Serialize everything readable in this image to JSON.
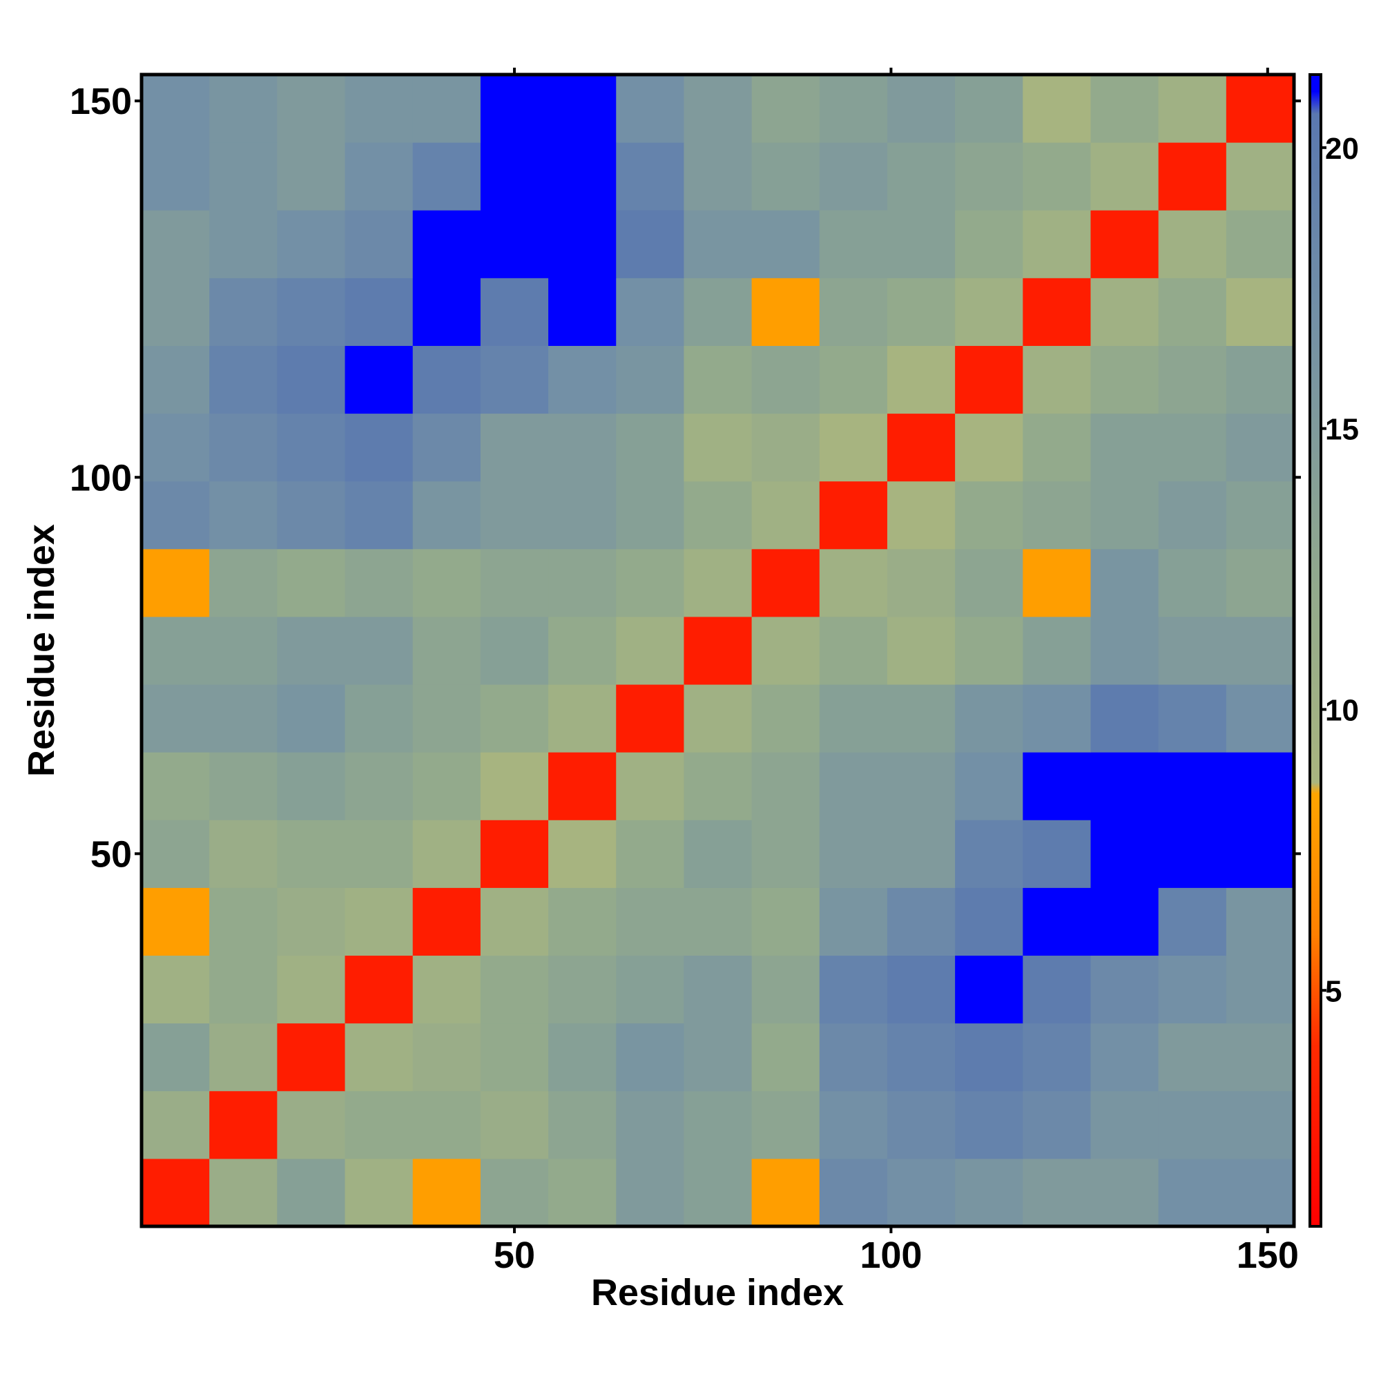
{
  "chart_data": {
    "type": "heatmap",
    "xlabel": "Residue index",
    "ylabel": "Residue index",
    "xlim": [
      0.5,
      153.5
    ],
    "ylim": [
      0.5,
      153.5
    ],
    "xticks": [
      50,
      100,
      150
    ],
    "yticks": [
      50,
      100,
      150
    ],
    "x_bins": [
      0.5,
      9.5,
      18.5,
      27.5,
      36.5,
      45.5,
      54.5,
      63.5,
      72.5,
      81.5,
      90.5,
      99.5,
      108.5,
      117.5,
      126.5,
      135.5,
      144.5,
      153.5
    ],
    "y_bins": [
      0.5,
      9.5,
      18.5,
      27.5,
      36.5,
      45.5,
      54.5,
      63.5,
      72.5,
      81.5,
      90.5,
      99.5,
      108.5,
      117.5,
      126.5,
      135.5,
      144.5,
      153.5
    ],
    "values": [
      [
        3,
        11,
        14,
        10,
        8,
        13,
        12,
        15,
        14,
        8,
        18,
        17,
        16,
        15,
        15,
        17,
        17
      ],
      [
        11,
        3,
        11,
        12,
        12,
        11,
        13,
        15,
        14,
        13,
        17,
        18,
        19,
        18,
        16,
        16,
        16
      ],
      [
        14,
        11,
        3,
        10,
        11,
        12,
        14,
        16,
        15,
        12,
        18,
        19,
        20,
        19,
        17,
        15,
        15
      ],
      [
        10,
        12,
        10,
        3,
        10,
        12,
        13,
        14,
        15,
        13,
        19,
        20,
        21,
        20,
        18,
        17,
        16
      ],
      [
        8,
        12,
        11,
        10,
        3,
        10,
        12,
        13,
        13,
        12,
        16,
        18,
        20,
        21,
        21,
        19,
        16
      ],
      [
        13,
        11,
        12,
        12,
        10,
        3,
        9,
        12,
        14,
        13,
        15,
        15,
        19,
        20,
        21,
        21,
        21
      ],
      [
        12,
        13,
        14,
        13,
        12,
        9,
        3,
        10,
        12,
        13,
        15,
        15,
        17,
        21,
        21,
        21,
        21
      ],
      [
        15,
        15,
        16,
        14,
        13,
        12,
        10,
        3,
        10,
        12,
        14,
        14,
        16,
        17,
        20,
        19,
        17
      ],
      [
        14,
        14,
        15,
        15,
        13,
        14,
        12,
        10,
        3,
        10,
        12,
        10,
        12,
        14,
        16,
        15,
        15
      ],
      [
        8,
        13,
        12,
        13,
        12,
        13,
        13,
        12,
        10,
        3,
        10,
        11,
        13,
        8,
        16,
        14,
        13
      ],
      [
        18,
        17,
        18,
        19,
        16,
        15,
        15,
        14,
        12,
        10,
        3,
        9,
        12,
        13,
        14,
        15,
        14
      ],
      [
        17,
        18,
        19,
        20,
        18,
        15,
        15,
        14,
        10,
        11,
        9,
        3,
        9,
        12,
        14,
        14,
        15
      ],
      [
        16,
        19,
        20,
        21,
        20,
        19,
        17,
        16,
        12,
        13,
        12,
        9,
        3,
        10,
        12,
        13,
        14
      ],
      [
        15,
        18,
        19,
        20,
        21,
        20,
        21,
        17,
        14,
        8,
        13,
        12,
        10,
        3,
        10,
        12,
        9
      ],
      [
        15,
        16,
        17,
        18,
        21,
        21,
        21,
        20,
        16,
        16,
        14,
        14,
        12,
        10,
        3,
        10,
        12
      ],
      [
        17,
        16,
        15,
        17,
        19,
        21,
        21,
        19,
        15,
        14,
        15,
        14,
        13,
        12,
        10,
        3,
        10
      ],
      [
        17,
        16,
        15,
        16,
        16,
        21,
        21,
        17,
        15,
        13,
        14,
        15,
        14,
        9,
        12,
        10,
        3
      ]
    ],
    "clim": [
      0.8,
      21.3
    ],
    "cticks": [
      5,
      10,
      15,
      20
    ],
    "colorscale": [
      [
        0.8,
        "#ff0000"
      ],
      [
        4,
        "#ff2a00"
      ],
      [
        6,
        "#ff8000"
      ],
      [
        8.5,
        "#ffa500"
      ],
      [
        8.7,
        "#a9b57f"
      ],
      [
        12,
        "#93aa8c"
      ],
      [
        17,
        "#7390a6"
      ],
      [
        20.6,
        "#5a78b0"
      ],
      [
        21,
        "#0000ff"
      ]
    ]
  }
}
